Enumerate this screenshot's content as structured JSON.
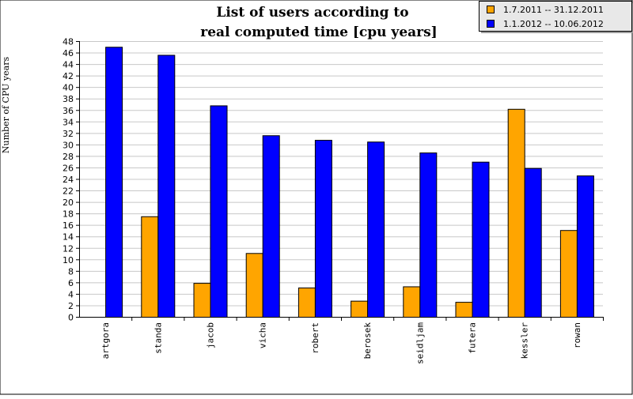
{
  "chart_data": {
    "type": "bar",
    "title_lines": [
      "List of users according to",
      "real computed time [cpu years]"
    ],
    "xlabel": "",
    "ylabel": "Number of CPU years",
    "ylim": [
      0,
      48
    ],
    "yticks": [
      0,
      2,
      4,
      6,
      8,
      10,
      12,
      14,
      16,
      18,
      20,
      22,
      24,
      26,
      28,
      30,
      32,
      34,
      36,
      38,
      40,
      42,
      44,
      46,
      48
    ],
    "grid": true,
    "legend_position": "top-right",
    "categories": [
      "artgora",
      "standa",
      "jacob",
      "vicha",
      "robert",
      "berosek",
      "seidljam",
      "futera",
      "kessler",
      "rowan"
    ],
    "series": [
      {
        "name": "1.7.2011 -- 31.12.2011",
        "color": "#ffa500",
        "values": [
          0,
          17.5,
          5.9,
          11.1,
          5.1,
          2.8,
          5.3,
          2.6,
          36.2,
          15.1
        ]
      },
      {
        "name": "1.1.2012 -- 10.06.2012",
        "color": "#0000ff",
        "values": [
          47.0,
          45.6,
          36.8,
          31.6,
          30.8,
          30.5,
          28.6,
          27.0,
          25.9,
          24.6
        ]
      }
    ]
  }
}
